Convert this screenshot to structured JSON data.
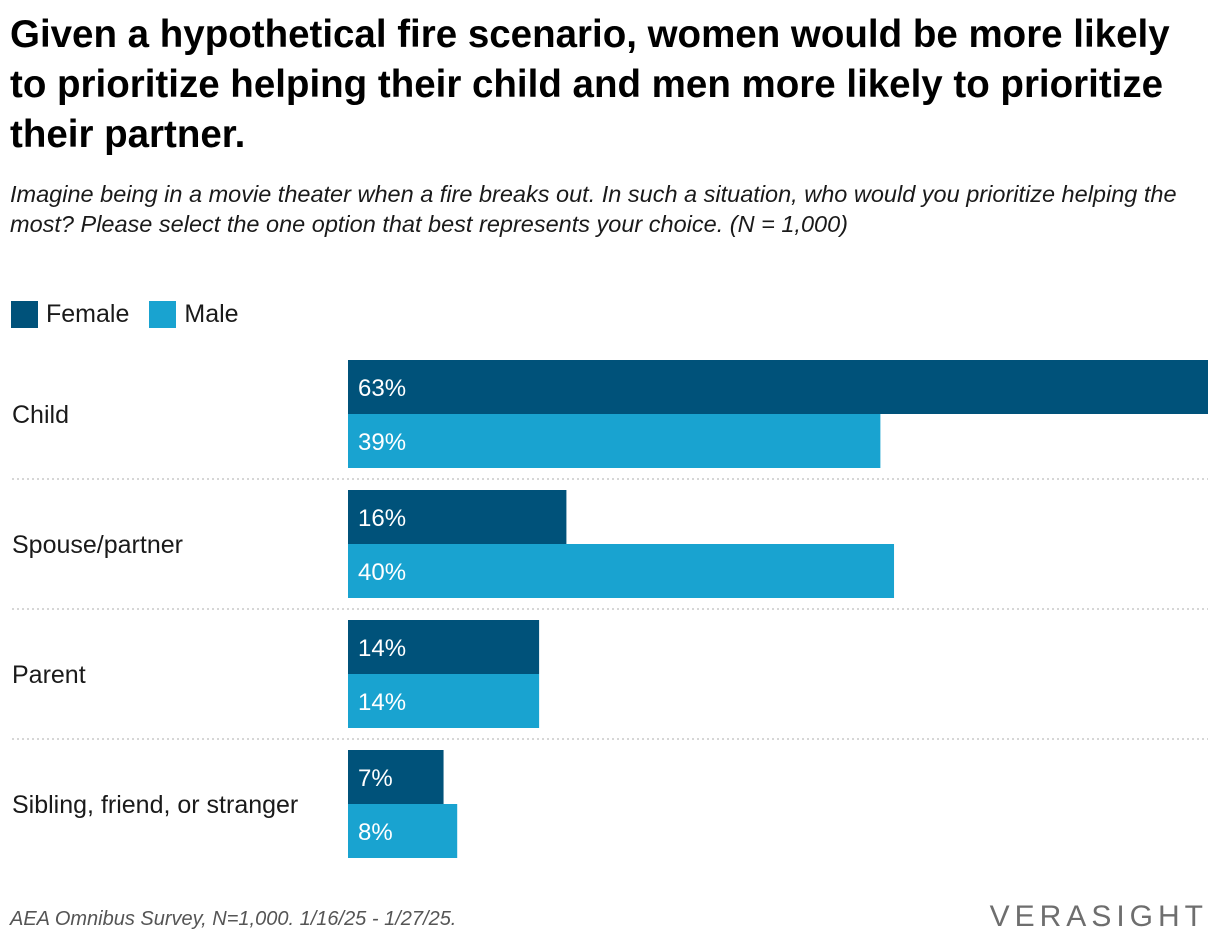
{
  "title": "Given a hypothetical fire scenario, women would be more likely to prioritize helping their child and men more likely to prioritize their partner.",
  "subtitle": "Imagine being in a movie theater when a fire breaks out. In such a situation, who would you prioritize helping the most? Please select the one option that best represents your choice. (N = 1,000)",
  "legend": [
    {
      "label": "Female",
      "color": "#00527a"
    },
    {
      "label": "Male",
      "color": "#19a3d0"
    }
  ],
  "chart_data": {
    "type": "bar",
    "orientation": "horizontal",
    "categories": [
      "Child",
      "Spouse/partner",
      "Parent",
      "Sibling, friend, or stranger"
    ],
    "series": [
      {
        "name": "Female",
        "color": "#00527a",
        "values": [
          63,
          16,
          14,
          7
        ],
        "labels": [
          "63%",
          "16%",
          "14%",
          "7%"
        ]
      },
      {
        "name": "Male",
        "color": "#19a3d0",
        "values": [
          39,
          40,
          14,
          8
        ],
        "labels": [
          "39%",
          "40%",
          "14%",
          "8%"
        ]
      }
    ],
    "xlim": [
      0,
      63
    ],
    "value_format": "percent"
  },
  "footer": "AEA Omnibus Survey, N=1,000. 1/16/25 - 1/27/25.",
  "logo_text": "VERASIGHT"
}
